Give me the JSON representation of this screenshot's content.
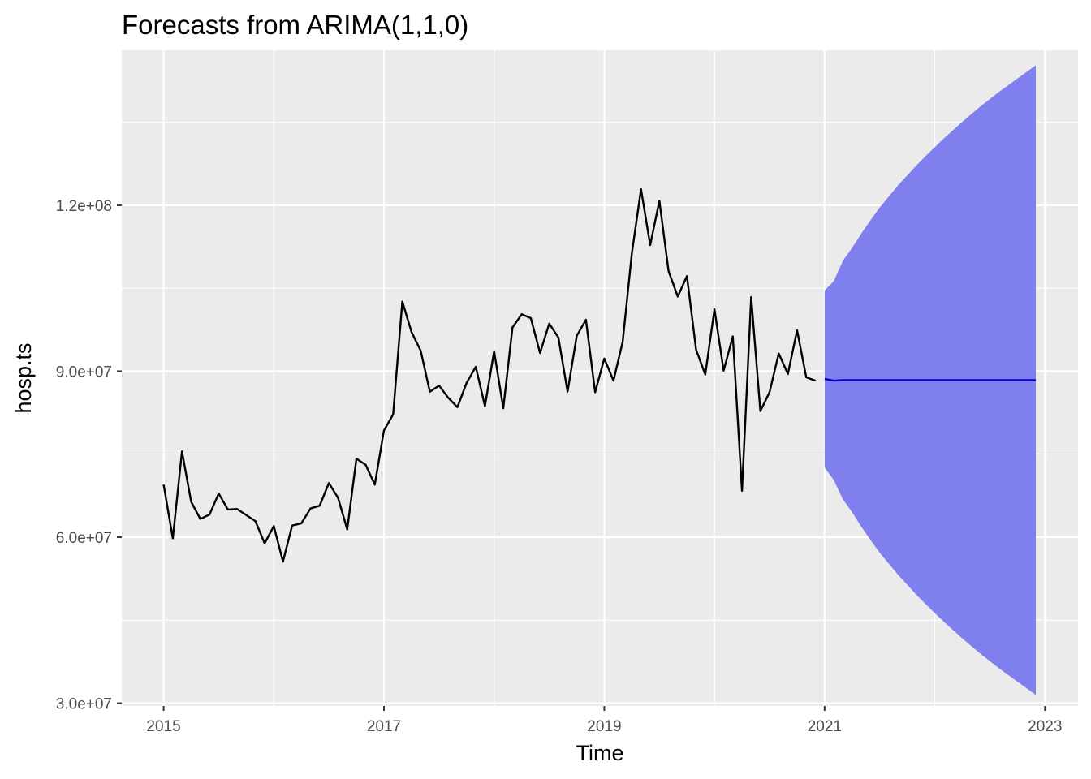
{
  "chart_data": {
    "type": "line",
    "title": "Forecasts from ARIMA(1,1,0)",
    "xlabel": "Time",
    "ylabel": "hosp.ts",
    "xlim": [
      2014.62,
      2023.3
    ],
    "ylim": [
      29500000,
      148000000
    ],
    "x_ticks": [
      2015,
      2017,
      2019,
      2021,
      2023
    ],
    "x_tick_labels": [
      "2015",
      "2017",
      "2019",
      "2021",
      "2023"
    ],
    "y_ticks": [
      30000000,
      60000000,
      90000000,
      120000000
    ],
    "y_tick_labels": [
      "3.0e+07",
      "6.0e+07",
      "9.0e+07",
      "1.2e+08"
    ],
    "grid": true,
    "colors": {
      "panel_background": "#EBEBEB",
      "grid": "#FFFFFF",
      "observed": "#000000",
      "forecast": "#0000CC",
      "interval": "#7F7FEE"
    },
    "observed": {
      "start": [
        2015,
        1
      ],
      "frequency": 12,
      "values": [
        69500000,
        59800000,
        75500000,
        66400000,
        63300000,
        64100000,
        67900000,
        65000000,
        65100000,
        64000000,
        62900000,
        58900000,
        62000000,
        55600000,
        62100000,
        62500000,
        65200000,
        65700000,
        69800000,
        67100000,
        61400000,
        74200000,
        73100000,
        69500000,
        79300000,
        82200000,
        102600000,
        97100000,
        93700000,
        86300000,
        87400000,
        85200000,
        83500000,
        87900000,
        90800000,
        83700000,
        93600000,
        83300000,
        97900000,
        100300000,
        99600000,
        93300000,
        98600000,
        96100000,
        86300000,
        96400000,
        99300000,
        86200000,
        92300000,
        88300000,
        95300000,
        111300000,
        122900000,
        112800000,
        120800000,
        108100000,
        103500000,
        107200000,
        93900000,
        89400000,
        101200000,
        90100000,
        96300000,
        68400000,
        103400000,
        82800000,
        86200000,
        93200000,
        89500000,
        97400000,
        88900000,
        88300000
      ]
    },
    "forecast": {
      "start": [
        2021,
        1
      ],
      "frequency": 12,
      "point": [
        88600000,
        88300000,
        88400000,
        88400000,
        88400000,
        88400000,
        88400000,
        88400000,
        88400000,
        88400000,
        88400000,
        88400000,
        88400000,
        88400000,
        88400000,
        88400000,
        88400000,
        88400000,
        88400000,
        88400000,
        88400000,
        88400000,
        88400000,
        88400000
      ],
      "hi95": [
        104600000,
        106300000,
        110000000,
        112300000,
        114900000,
        117300000,
        119600000,
        121600000,
        123600000,
        125400000,
        127200000,
        128900000,
        130500000,
        132100000,
        133600000,
        135100000,
        136500000,
        137900000,
        139200000,
        140500000,
        141700000,
        142900000,
        144100000,
        145300000
      ],
      "lo95": [
        72600000,
        70300000,
        66800000,
        64500000,
        61900000,
        59500000,
        57200000,
        55200000,
        53200000,
        51400000,
        49600000,
        47900000,
        46300000,
        44700000,
        43200000,
        41700000,
        40300000,
        38900000,
        37600000,
        36300000,
        35100000,
        33900000,
        32700000,
        31500000
      ]
    }
  }
}
